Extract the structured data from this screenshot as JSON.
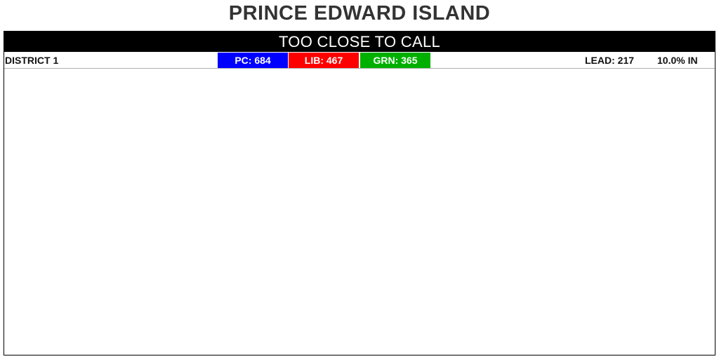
{
  "header": {
    "title": "PRINCE EDWARD ISLAND"
  },
  "banner": {
    "status": "TOO CLOSE TO CALL"
  },
  "colors": {
    "pc": "#0000ff",
    "lib": "#ff0000",
    "grn": "#00b000",
    "banner_bg": "#000000",
    "title_text": "#333333"
  },
  "districts": [
    {
      "name": "DISTRICT 1",
      "results": [
        {
          "party": "PC",
          "label": "PC: 684",
          "votes": 684,
          "color": "#0000ff"
        },
        {
          "party": "LIB",
          "label": "LIB: 467",
          "votes": 467,
          "color": "#ff0000"
        },
        {
          "party": "GRN",
          "label": "GRN: 365",
          "votes": 365,
          "color": "#00b000"
        }
      ],
      "lead_label": "LEAD: 217",
      "lead": 217,
      "reporting_label": "10.0% IN",
      "reporting_pct": 10.0
    }
  ]
}
